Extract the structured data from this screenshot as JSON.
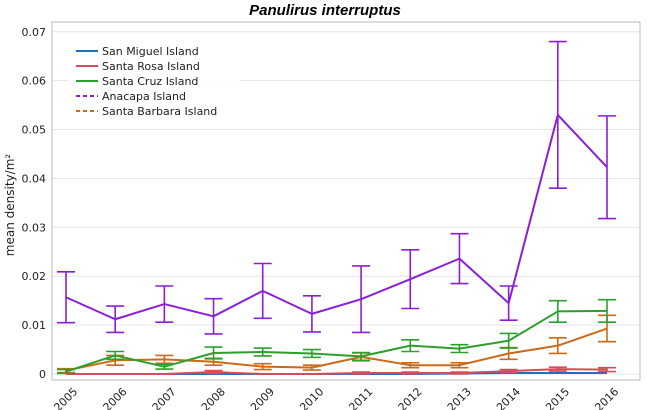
{
  "chart_data": {
    "type": "line",
    "title": "Panulirus interruptus",
    "xlabel": "",
    "ylabel": "mean density/m²",
    "x": [
      "2005",
      "2006",
      "2007",
      "2008",
      "2009",
      "2010",
      "2011",
      "2012",
      "2013",
      "2014",
      "2015",
      "2016"
    ],
    "ylim": [
      0,
      0.072
    ],
    "yticks": [
      "0",
      "0.01",
      "0.02",
      "0.03",
      "0.04",
      "0.05",
      "0.06",
      "0.07"
    ],
    "grid": true,
    "legend_position": "top-left",
    "series": [
      {
        "name": "San Miguel Island",
        "color": "#1f6fbf",
        "dash": "solid",
        "values": [
          0.0,
          0.0,
          0.0,
          0.0,
          0.0,
          0.0,
          0.0,
          0.0,
          0.0001,
          0.0002,
          0.0002,
          0.0002
        ],
        "err": [
          0,
          0,
          0,
          0,
          0,
          0,
          0,
          0,
          0,
          0,
          0,
          0
        ]
      },
      {
        "name": "Santa Rosa Island",
        "color": "#d64b5e",
        "dash": "solid",
        "values": [
          0.0,
          0.0,
          0.0,
          0.0004,
          0.0,
          0.0,
          0.0002,
          0.0002,
          0.0002,
          0.0006,
          0.001,
          0.0009
        ],
        "err": [
          0,
          0,
          0,
          0.0003,
          0,
          0,
          0.0002,
          0.0002,
          0.0002,
          0.0003,
          0.0004,
          0.0004
        ]
      },
      {
        "name": "Santa Cruz Island",
        "color": "#2ca02c",
        "dash": "solid",
        "values": [
          0.0005,
          0.0038,
          0.0015,
          0.0043,
          0.0045,
          0.0042,
          0.0036,
          0.0058,
          0.0052,
          0.0068,
          0.0128,
          0.0129
        ],
        "err": [
          0.0004,
          0.0008,
          0.0005,
          0.0012,
          0.0008,
          0.0008,
          0.0008,
          0.0012,
          0.0008,
          0.0015,
          0.0022,
          0.0023
        ]
      },
      {
        "name": "Anacapa Island",
        "color": "#8b1fd6",
        "dash": "dashed",
        "values": [
          0.0157,
          0.0112,
          0.0143,
          0.0118,
          0.017,
          0.0123,
          0.0153,
          0.0194,
          0.0236,
          0.0145,
          0.053,
          0.0423
        ],
        "err": [
          0.0052,
          0.0027,
          0.0037,
          0.0036,
          0.0056,
          0.0037,
          0.0068,
          0.006,
          0.0051,
          0.0035,
          0.015,
          0.0105
        ]
      },
      {
        "name": "Santa Barbara Island",
        "color": "#cc6a1a",
        "dash": "dashed",
        "values": [
          0.0007,
          0.0028,
          0.003,
          0.0025,
          0.0015,
          0.0013,
          0.0035,
          0.0018,
          0.0018,
          0.0042,
          0.0058,
          0.0093
        ],
        "err": [
          0.0004,
          0.001,
          0.0008,
          0.0007,
          0.0006,
          0.0005,
          0.0008,
          0.0005,
          0.0005,
          0.0012,
          0.0016,
          0.0027
        ]
      }
    ]
  }
}
